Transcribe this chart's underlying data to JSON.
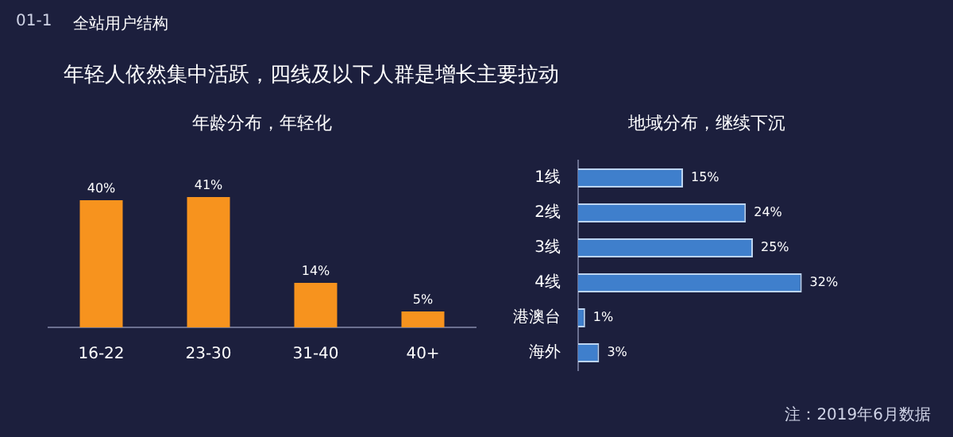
{
  "chart_data": [
    {
      "type": "bar",
      "title": "年龄分布，年轻化",
      "annotations": [
        "01-1",
        "全站用户结构",
        "年轻人依然集中活跃，四线及以下人群是增长主要拉动"
      ],
      "categories": [
        "16-22",
        "23-30",
        "31-40",
        "40+"
      ],
      "values": [
        40,
        41,
        14,
        5
      ],
      "value_labels": [
        "40%",
        "41%",
        "14%",
        "5%"
      ],
      "color": "#f7931e",
      "tick_labels": "x"
    },
    {
      "type": "bar",
      "orientation": "horizontal",
      "title": "地域分布，继续下沉",
      "annotations": [
        "注：2019年6月数据"
      ],
      "categories": [
        "1线",
        "2线",
        "3线",
        "4线",
        "港澳台",
        "海外"
      ],
      "values": [
        15,
        24,
        25,
        32,
        1,
        3
      ],
      "value_labels": [
        "15%",
        "24%",
        "25%",
        "32%",
        "1%",
        "3%"
      ],
      "color": "#3f7fcc",
      "tick_labels": "y"
    }
  ]
}
